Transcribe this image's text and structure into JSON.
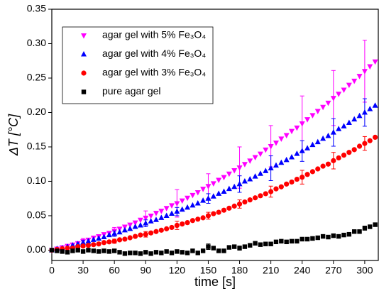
{
  "chart_data": {
    "type": "scatter",
    "x_label": "time [s]",
    "y_label": "ΔT [°C]",
    "x": [
      0,
      5,
      10,
      15,
      20,
      25,
      30,
      35,
      40,
      45,
      50,
      55,
      60,
      65,
      70,
      75,
      80,
      85,
      90,
      95,
      100,
      105,
      110,
      115,
      120,
      125,
      130,
      135,
      140,
      145,
      150,
      155,
      160,
      165,
      170,
      175,
      180,
      185,
      190,
      195,
      200,
      205,
      210,
      215,
      220,
      225,
      230,
      235,
      240,
      245,
      250,
      255,
      260,
      265,
      270,
      275,
      280,
      285,
      290,
      295,
      300,
      305,
      310
    ],
    "series": [
      {
        "name": "agar gel with 5% Fe₃O₄",
        "color": "#ff00ff",
        "marker": "triangle-down",
        "values": [
          0,
          0.002,
          0.004,
          0.006,
          0.008,
          0.01,
          0.013,
          0.015,
          0.018,
          0.02,
          0.023,
          0.025,
          0.028,
          0.031,
          0.034,
          0.037,
          0.04,
          0.044,
          0.047,
          0.05,
          0.054,
          0.057,
          0.061,
          0.065,
          0.068,
          0.072,
          0.076,
          0.08,
          0.084,
          0.089,
          0.093,
          0.097,
          0.102,
          0.106,
          0.111,
          0.116,
          0.12,
          0.125,
          0.13,
          0.135,
          0.14,
          0.146,
          0.151,
          0.156,
          0.162,
          0.167,
          0.173,
          0.178,
          0.184,
          0.19,
          0.196,
          0.202,
          0.208,
          0.214,
          0.221,
          0.227,
          0.233,
          0.24,
          0.246,
          0.253,
          0.26,
          0.267,
          0.274
        ],
        "errors": [
          null,
          null,
          null,
          null,
          null,
          null,
          0.004,
          null,
          null,
          null,
          null,
          null,
          0.005,
          null,
          null,
          null,
          null,
          null,
          0.01,
          null,
          null,
          null,
          null,
          null,
          0.02,
          null,
          null,
          null,
          null,
          null,
          0.018,
          null,
          null,
          null,
          null,
          null,
          0.03,
          null,
          null,
          null,
          null,
          null,
          0.03,
          null,
          null,
          null,
          null,
          null,
          0.04,
          null,
          null,
          null,
          null,
          null,
          0.04,
          null,
          null,
          null,
          null,
          null,
          0.045,
          null,
          null
        ]
      },
      {
        "name": "agar gel with 4% Fe₃O₄",
        "color": "#0000ff",
        "marker": "triangle-up",
        "values": [
          0,
          0.002,
          0.003,
          0.005,
          0.007,
          0.009,
          0.011,
          0.013,
          0.015,
          0.017,
          0.019,
          0.022,
          0.024,
          0.026,
          0.029,
          0.031,
          0.034,
          0.036,
          0.039,
          0.042,
          0.044,
          0.047,
          0.05,
          0.053,
          0.056,
          0.059,
          0.062,
          0.065,
          0.068,
          0.072,
          0.075,
          0.078,
          0.082,
          0.085,
          0.089,
          0.092,
          0.096,
          0.1,
          0.103,
          0.107,
          0.111,
          0.115,
          0.119,
          0.123,
          0.127,
          0.131,
          0.135,
          0.14,
          0.144,
          0.148,
          0.153,
          0.157,
          0.162,
          0.166,
          0.171,
          0.176,
          0.18,
          0.185,
          0.19,
          0.195,
          0.2,
          0.205,
          0.21
        ],
        "errors": [
          null,
          null,
          null,
          null,
          null,
          null,
          0.003,
          null,
          null,
          null,
          null,
          null,
          0.004,
          null,
          null,
          null,
          null,
          null,
          0.005,
          null,
          null,
          null,
          null,
          null,
          0.006,
          null,
          null,
          null,
          null,
          null,
          0.007,
          null,
          null,
          null,
          null,
          null,
          0.012,
          null,
          null,
          null,
          null,
          null,
          0.018,
          null,
          null,
          null,
          null,
          null,
          0.015,
          null,
          null,
          null,
          null,
          null,
          0.02,
          null,
          null,
          null,
          null,
          null,
          0.02,
          null,
          null
        ]
      },
      {
        "name": "agar gel with 3% Fe₃O₄",
        "color": "#ff0000",
        "marker": "circle",
        "values": [
          0,
          0.001,
          0.002,
          0.003,
          0.003,
          0.005,
          0.006,
          0.007,
          0.008,
          0.009,
          0.011,
          0.012,
          0.013,
          0.015,
          0.016,
          0.018,
          0.02,
          0.022,
          0.023,
          0.025,
          0.027,
          0.029,
          0.031,
          0.033,
          0.036,
          0.038,
          0.04,
          0.043,
          0.045,
          0.047,
          0.05,
          0.053,
          0.055,
          0.058,
          0.061,
          0.064,
          0.067,
          0.07,
          0.073,
          0.076,
          0.079,
          0.082,
          0.085,
          0.089,
          0.092,
          0.096,
          0.099,
          0.103,
          0.106,
          0.11,
          0.114,
          0.118,
          0.122,
          0.125,
          0.13,
          0.134,
          0.138,
          0.142,
          0.146,
          0.151,
          0.155,
          0.159,
          0.164
        ],
        "errors": [
          null,
          null,
          null,
          null,
          null,
          null,
          0.002,
          null,
          null,
          null,
          null,
          null,
          0.003,
          null,
          null,
          null,
          null,
          null,
          0.004,
          null,
          null,
          null,
          null,
          null,
          0.006,
          null,
          null,
          null,
          null,
          null,
          0.005,
          null,
          null,
          null,
          null,
          null,
          0.006,
          null,
          null,
          null,
          null,
          null,
          0.008,
          null,
          null,
          null,
          null,
          null,
          0.01,
          null,
          null,
          null,
          null,
          null,
          0.012,
          null,
          null,
          null,
          null,
          null,
          0.01,
          null,
          null
        ]
      },
      {
        "name": "pure agar gel",
        "color": "#000000",
        "marker": "square",
        "values": [
          0,
          -0.001,
          -0.002,
          -0.003,
          -0.001,
          0,
          -0.002,
          0,
          -0.001,
          -0.002,
          -0.001,
          -0.002,
          -0.001,
          -0.003,
          -0.005,
          -0.004,
          -0.004,
          -0.005,
          -0.003,
          -0.005,
          -0.003,
          -0.004,
          -0.002,
          -0.004,
          -0.002,
          -0.003,
          -0.004,
          -0.001,
          -0.004,
          -0.001,
          0.005,
          0.003,
          -0.001,
          -0.001,
          0.004,
          0.005,
          0.003,
          0.005,
          0.007,
          0.01,
          0.008,
          0.009,
          0.009,
          0.012,
          0.013,
          0.012,
          0.013,
          0.013,
          0.016,
          0.016,
          0.017,
          0.018,
          0.02,
          0.019,
          0.021,
          0.02,
          0.022,
          0.023,
          0.027,
          0.027,
          0.032,
          0.034,
          0.037
        ],
        "errors": [
          null,
          null,
          null,
          null,
          null,
          null,
          0.002,
          null,
          null,
          null,
          null,
          null,
          0.002,
          null,
          null,
          null,
          null,
          null,
          0.002,
          null,
          null,
          null,
          null,
          null,
          0.002,
          null,
          null,
          null,
          null,
          null,
          0.004,
          null,
          null,
          null,
          null,
          null,
          0.003,
          null,
          null,
          null,
          null,
          null,
          0.002,
          null,
          null,
          null,
          null,
          null,
          0.002,
          null,
          null,
          null,
          null,
          null,
          0.002,
          null,
          null,
          null,
          null,
          null,
          0.003,
          null,
          null
        ]
      }
    ],
    "xlim": [
      0,
      313
    ],
    "ylim": [
      -0.015,
      0.35
    ],
    "xticks": [
      0,
      30,
      60,
      90,
      120,
      150,
      180,
      210,
      240,
      270,
      300
    ],
    "yticks": [
      {
        "value": 0,
        "label": "0.00"
      },
      0.05,
      {
        "value": 0.1,
        "label": "0.10"
      },
      0.15,
      {
        "value": 0.2,
        "label": "0.20"
      },
      0.25,
      {
        "value": 0.3,
        "label": "0.30"
      },
      0.35
    ],
    "legend": "upper-left",
    "grid": false
  }
}
